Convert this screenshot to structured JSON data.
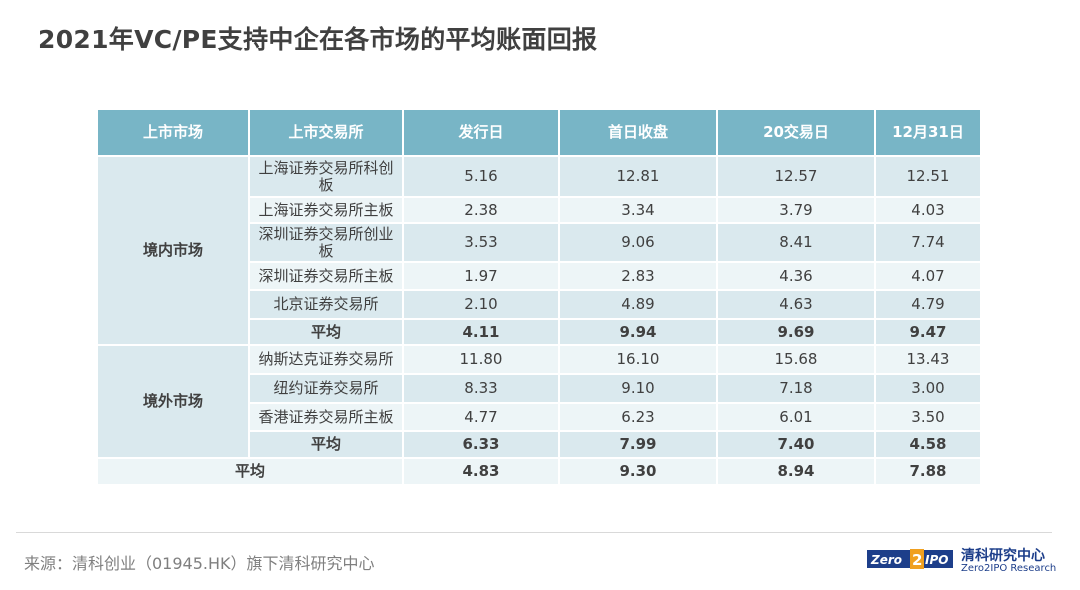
{
  "title": "2021年VC/PE支持中企在各市场的平均账面回报",
  "table": {
    "headers": [
      "上市市场",
      "上市交易所",
      "发行日",
      "首日收盘",
      "20交易日",
      "12月31日"
    ],
    "domestic": {
      "market": "境内市场",
      "rows": [
        {
          "exchange": "上海证券交易所科创板",
          "values": [
            "5.16",
            "12.81",
            "12.57",
            "12.51"
          ]
        },
        {
          "exchange": "上海证券交易所主板",
          "values": [
            "2.38",
            "3.34",
            "3.79",
            "4.03"
          ]
        },
        {
          "exchange": "深圳证券交易所创业板",
          "values": [
            "3.53",
            "9.06",
            "8.41",
            "7.74"
          ]
        },
        {
          "exchange": "深圳证券交易所主板",
          "values": [
            "1.97",
            "2.83",
            "4.36",
            "4.07"
          ]
        },
        {
          "exchange": "北京证券交易所",
          "values": [
            "2.10",
            "4.89",
            "4.63",
            "4.79"
          ]
        }
      ],
      "avg": {
        "label": "平均",
        "values": [
          "4.11",
          "9.94",
          "9.69",
          "9.47"
        ]
      }
    },
    "overseas": {
      "market": "境外市场",
      "rows": [
        {
          "exchange": "纳斯达克证券交易所",
          "values": [
            "11.80",
            "16.10",
            "15.68",
            "13.43"
          ]
        },
        {
          "exchange": "纽约证券交易所",
          "values": [
            "8.33",
            "9.10",
            "7.18",
            "3.00"
          ]
        },
        {
          "exchange": "香港证券交易所主板",
          "values": [
            "4.77",
            "6.23",
            "6.01",
            "3.50"
          ]
        }
      ],
      "avg": {
        "label": "平均",
        "values": [
          "6.33",
          "7.99",
          "7.40",
          "4.58"
        ]
      }
    },
    "total": {
      "label": "平均",
      "values": [
        "4.83",
        "9.30",
        "8.94",
        "7.88"
      ]
    }
  },
  "source": "来源：清科创业（01945.HK）旗下清科研究中心",
  "logo": {
    "mark": "Zero2IPO",
    "name_cn": "清科研究中心",
    "name_en": "Zero2IPO Research"
  },
  "colors": {
    "header_bg": "#78b5c6",
    "row_light": "#edf5f7",
    "row_dark": "#dae9ee",
    "brand_blue": "#1d3e8a",
    "brand_orange": "#f0a020"
  }
}
